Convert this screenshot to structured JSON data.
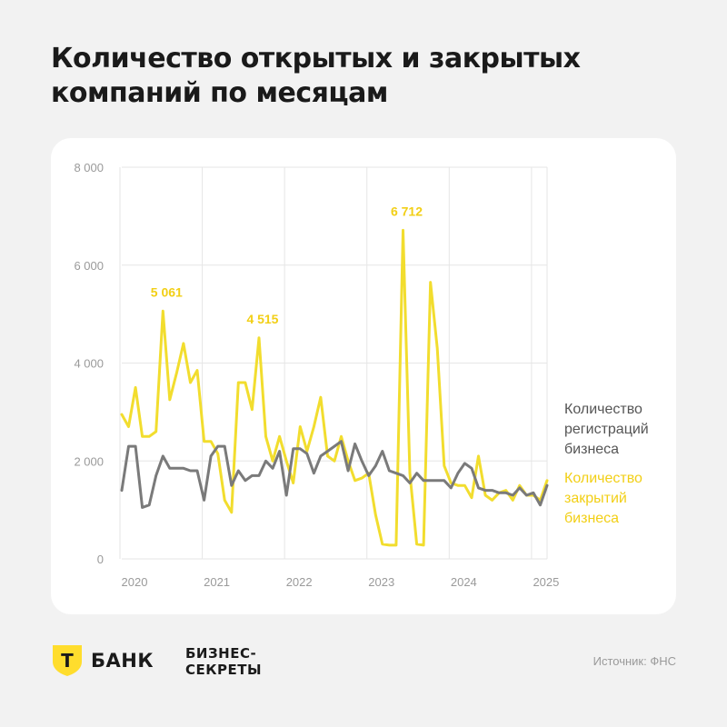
{
  "title": "Количество открытых и закрытых компаний по месяцам",
  "legend": {
    "registrations": "Количество регистраций бизнеса",
    "closures": "Количество закрытий бизнеса"
  },
  "footer": {
    "logo_letter": "Т",
    "bank_name": "БАНК",
    "brand_line1": "БИЗНЕС-",
    "brand_line2": "СЕКРЕТЫ",
    "source": "Источник: ФНС"
  },
  "colors": {
    "registrations": "#7a7a7a",
    "closures": "#f2dd2e",
    "closures_label": "#f2cf16",
    "logo": "#ffdd2d"
  },
  "chart_data": {
    "type": "line",
    "x_ticks": [
      "2020",
      "2021",
      "2022",
      "2023",
      "2024",
      "2025"
    ],
    "y_ticks": [
      "8 000",
      "6 000",
      "4 000",
      "2 000",
      "0"
    ],
    "ylim": [
      0,
      8000
    ],
    "x_start": "2020-01",
    "grid": true,
    "legend_position": "right",
    "series": [
      {
        "name": "Количество регистраций бизнеса",
        "color": "#7a7a7a",
        "values": [
          1400,
          2300,
          2300,
          1050,
          1100,
          1700,
          2100,
          1850,
          1850,
          1850,
          1800,
          1800,
          1200,
          2100,
          2300,
          2300,
          1500,
          1800,
          1600,
          1700,
          1700,
          2000,
          1850,
          2200,
          1300,
          2250,
          2250,
          2150,
          1750,
          2100,
          2200,
          2300,
          2400,
          1800,
          2350,
          2000,
          1700,
          1900,
          2200,
          1800,
          1750,
          1700,
          1550,
          1750,
          1600,
          1600,
          1600,
          1600,
          1450,
          1750,
          1950,
          1850,
          1450,
          1400,
          1400,
          1350,
          1350,
          1300,
          1450,
          1300,
          1350,
          1100,
          1500
        ]
      },
      {
        "name": "Количество закрытий бизнеса",
        "color": "#f2dd2e",
        "values": [
          2950,
          2700,
          3500,
          2500,
          2500,
          2600,
          5061,
          3250,
          3800,
          4400,
          3600,
          3850,
          2400,
          2400,
          2150,
          1200,
          950,
          3600,
          3600,
          3050,
          4515,
          2500,
          2000,
          2500,
          2000,
          1550,
          2700,
          2200,
          2700,
          3300,
          2100,
          2000,
          2500,
          2000,
          1600,
          1650,
          1750,
          900,
          300,
          280,
          280,
          6712,
          1750,
          300,
          280,
          5650,
          4300,
          1900,
          1550,
          1500,
          1500,
          1250,
          2100,
          1300,
          1200,
          1350,
          1400,
          1200,
          1500,
          1300,
          1300,
          1200,
          1600
        ]
      }
    ],
    "annotations": [
      {
        "label": "5 061",
        "series": 1,
        "index": 6
      },
      {
        "label": "4 515",
        "series": 1,
        "index": 20
      },
      {
        "label": "6 712",
        "series": 1,
        "index": 41
      }
    ]
  }
}
